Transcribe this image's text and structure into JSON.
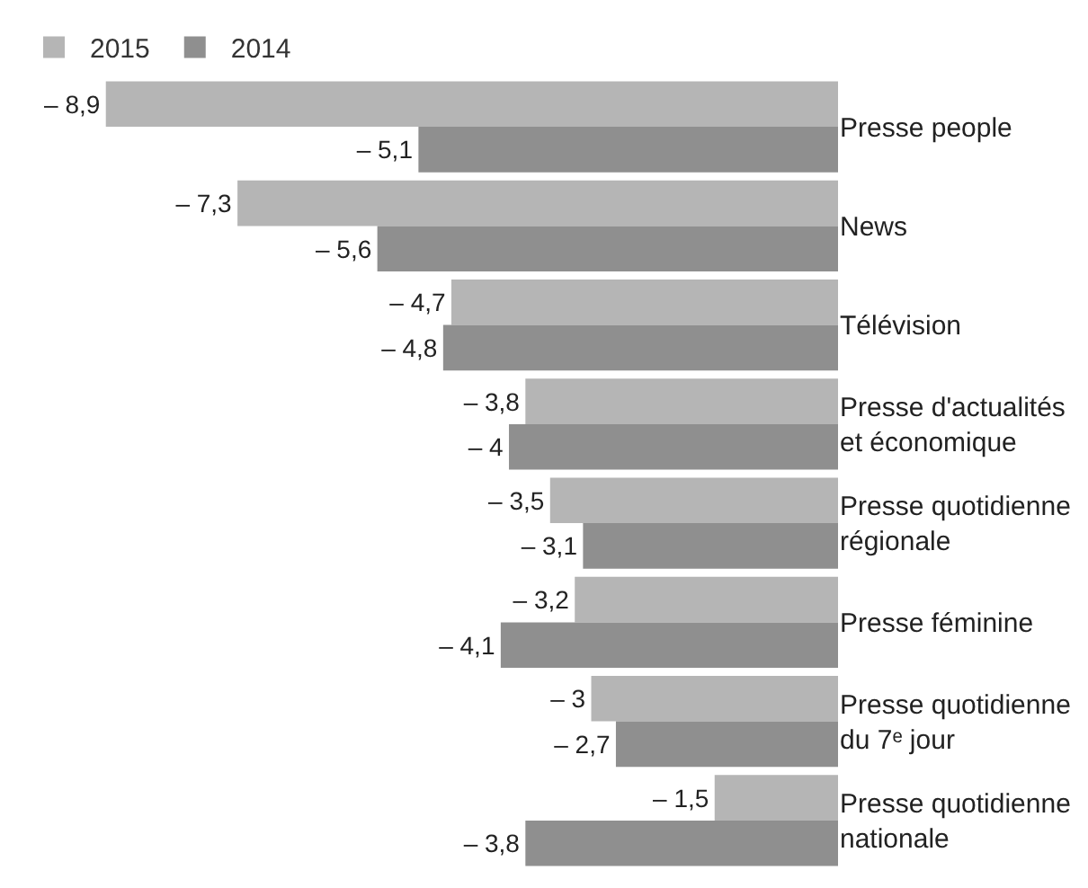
{
  "chart_data": {
    "type": "bar",
    "orientation": "horizontal",
    "categories": [
      "Presse people",
      "News",
      "Télévision",
      "Presse d'actualités et économique",
      "Presse quotidienne régionale",
      "Presse féminine",
      "Presse quotidienne du 7ᵉ jour",
      "Presse quotidienne nationale"
    ],
    "series": [
      {
        "name": "2015",
        "color": "#b5b5b5",
        "values": [
          -8.9,
          -7.3,
          -4.7,
          -3.8,
          -3.5,
          -3.2,
          -3,
          -1.5
        ],
        "value_labels": [
          "– 8,9",
          "– 7,3",
          "– 4,7",
          "– 3,8",
          "– 3,5",
          "– 3,2",
          "– 3",
          "– 1,5"
        ]
      },
      {
        "name": "2014",
        "color": "#8f8f8f",
        "values": [
          -5.1,
          -5.6,
          -4.8,
          -4,
          -3.1,
          -4.1,
          -2.7,
          -3.8
        ],
        "value_labels": [
          "– 5,1",
          "– 5,6",
          "– 4,8",
          "– 4",
          "– 3,1",
          "– 4,1",
          "– 2,7",
          "– 3,8"
        ]
      }
    ],
    "legend": "top left",
    "tick_labels": "y"
  }
}
